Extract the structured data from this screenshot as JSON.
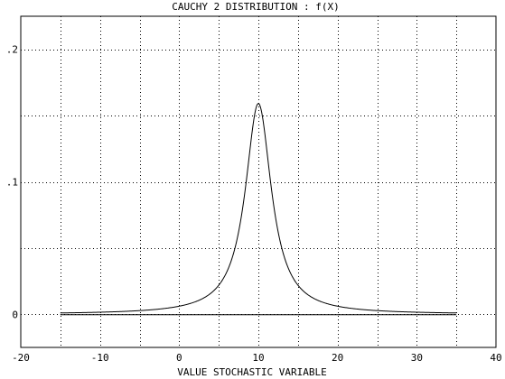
{
  "chart_data": {
    "type": "line",
    "title": "CAUCHY 2 DISTRIBUTION : f(X)",
    "xlabel": "VALUE STOCHASTIC VARIABLE",
    "ylabel": "",
    "xlim": [
      -20,
      40
    ],
    "ylim": [
      -0.025,
      0.225
    ],
    "grid": true,
    "grid_style": "dotted",
    "x_ticks": [
      -20,
      -10,
      0,
      10,
      20,
      30,
      40
    ],
    "x_tick_labels": [
      "-20",
      "-10",
      "0",
      "10",
      "20",
      "30",
      "40"
    ],
    "y_tick_labels": [
      {
        "value": 0,
        "label": "0"
      },
      {
        "value": 0.1,
        "label": ".1"
      },
      {
        "value": 0.2,
        "label": ".2"
      }
    ],
    "series": [
      {
        "curve": "cauchy_density",
        "location": 10,
        "scale": 2,
        "x_range": [
          -15,
          35
        ],
        "peak": {
          "x": 10,
          "y": 0.159
        }
      },
      {
        "curve": "baseline",
        "x": [
          -15,
          35
        ],
        "y": [
          0,
          0
        ]
      }
    ]
  }
}
